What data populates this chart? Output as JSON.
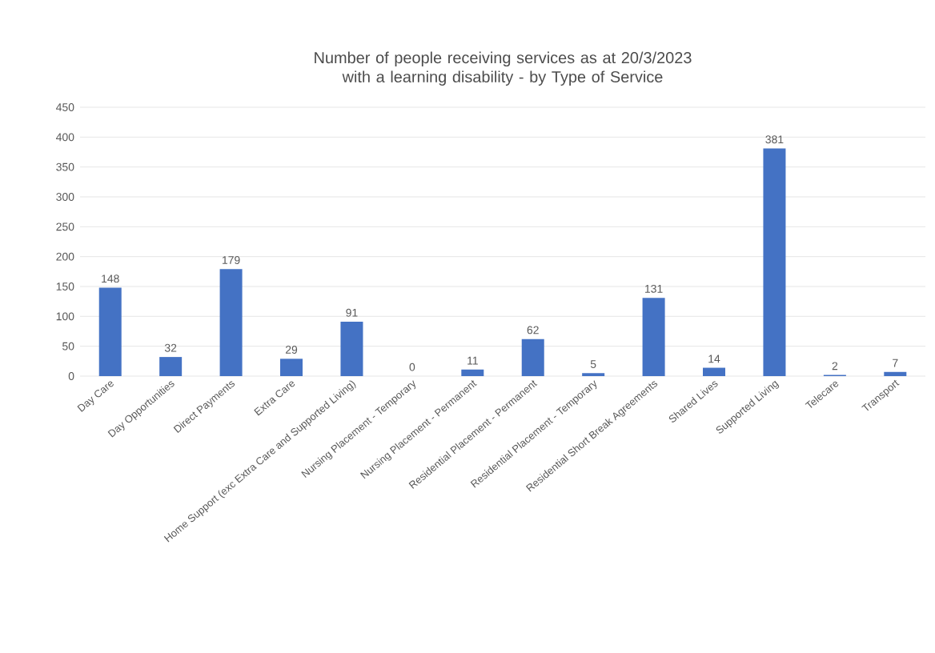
{
  "chart_data": {
    "type": "bar",
    "title": "Number of people receiving services as at 20/3/2023 with a learning disability - by Type of Service",
    "categories": [
      "Day Care",
      "Day Opportunities",
      "Direct Payments",
      "Extra Care",
      "Home Support (exc Extra Care and Supported Living)",
      "Nursing Placement - Temporary",
      "Nursing Placement - Permanent",
      "Residential Placement - Permanent",
      "Residential Placement - Temporary",
      "Residential Short Break Agreements",
      "Shared Lives",
      "Supported Living",
      "Telecare",
      "Transport"
    ],
    "values": [
      148,
      32,
      179,
      29,
      91,
      0,
      11,
      62,
      5,
      131,
      14,
      381,
      2,
      7
    ],
    "color": "#4472c4",
    "data_labels": true,
    "grid": "y",
    "ylim": [
      0,
      450
    ],
    "yticks": [
      0,
      50,
      100,
      150,
      200,
      250,
      300,
      350,
      400,
      450
    ]
  }
}
